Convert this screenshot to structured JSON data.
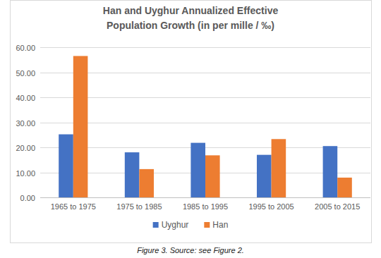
{
  "chart_data": {
    "type": "bar",
    "title": "Han and Uyghur Annualized Effective Population Growth (in per mille / ‰)",
    "caption": "Figure 3. Source: see Figure 2.",
    "categories": [
      "1965 to 1975",
      "1975 to 1985",
      "1985 to 1995",
      "1995 to 2005",
      "2005 to 2015"
    ],
    "series": [
      {
        "name": "Uyghur",
        "color": "#4472c4",
        "values": [
          25.2,
          18.0,
          21.8,
          17.0,
          20.5
        ]
      },
      {
        "name": "Han",
        "color": "#ed7d31",
        "values": [
          56.5,
          11.3,
          16.8,
          23.3,
          7.9
        ]
      }
    ],
    "ylim": [
      0,
      60
    ],
    "yticks": [
      {
        "value": 0,
        "label": "0.00"
      },
      {
        "value": 10,
        "label": "10.00"
      },
      {
        "value": 20,
        "label": "20.00"
      },
      {
        "value": 30,
        "label": "30.00"
      },
      {
        "value": 40,
        "label": "40.00"
      },
      {
        "value": 50,
        "label": "50.00"
      },
      {
        "value": 60,
        "label": "60.00"
      }
    ],
    "grid": true,
    "legend": "bottom"
  }
}
